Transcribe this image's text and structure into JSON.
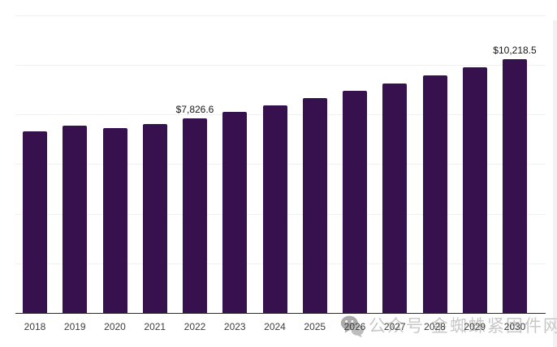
{
  "chart_data": {
    "type": "bar",
    "title": "",
    "xlabel": "",
    "ylabel": "",
    "legend": "none",
    "grid": "on",
    "grid_interval": 2000,
    "ylim": [
      0,
      12000
    ],
    "bar_color": "#37114D",
    "categories": [
      "2018",
      "2019",
      "2020",
      "2021",
      "2022",
      "2023",
      "2024",
      "2025",
      "2026",
      "2027",
      "2028",
      "2029",
      "2030"
    ],
    "values": [
      7310,
      7560,
      7445,
      7625,
      7826.6,
      8090,
      8365,
      8650,
      8940,
      9245,
      9560,
      9885,
      10218.5
    ],
    "value_labels": [
      {
        "index": 4,
        "category": "2022",
        "text": "$7,826.6"
      },
      {
        "index": 12,
        "category": "2030",
        "text": "$10,218.5"
      }
    ]
  },
  "watermark": {
    "icon": "wechat-icon",
    "text": "公众号 金蜘蛛紧固件网",
    "color": "#c8c8c8"
  }
}
